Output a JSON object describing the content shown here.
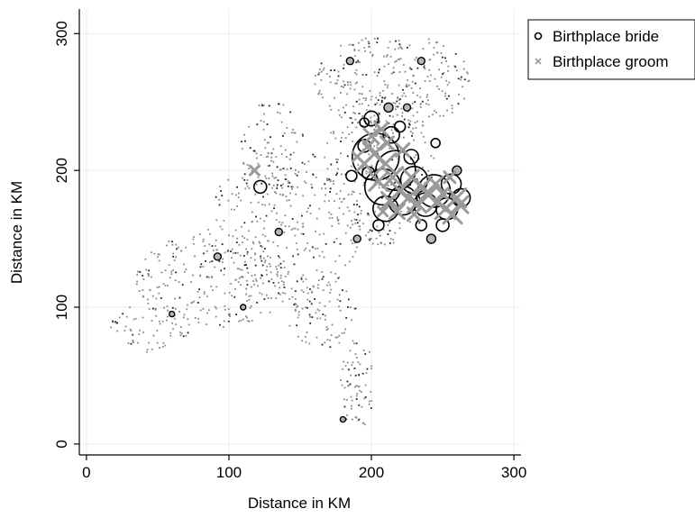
{
  "chart_data": {
    "type": "scatter",
    "title": "",
    "xlabel": "Distance in KM",
    "ylabel": "Distance in KM",
    "xlim": [
      -5,
      305
    ],
    "ylim": [
      -8,
      318
    ],
    "xticks": [
      0,
      100,
      200,
      300
    ],
    "yticks": [
      0,
      100,
      200,
      300
    ],
    "x_tick_labels": [
      "0",
      "100",
      "200",
      "300"
    ],
    "y_tick_labels": [
      "0",
      "100",
      "200",
      "300"
    ],
    "grid": true,
    "legend_position": "top-right outside plot",
    "series": [
      {
        "name": "Birthplace bride",
        "marker": "hollow-circle",
        "color": "#000000",
        "fill": "#b5b5b5",
        "points": [
          [
            203,
            210,
            26
          ],
          [
            217,
            200,
            22
          ],
          [
            208,
            188,
            20
          ],
          [
            244,
            185,
            18
          ],
          [
            230,
            193,
            15
          ],
          [
            222,
            178,
            16
          ],
          [
            210,
            172,
            14
          ],
          [
            238,
            175,
            13
          ],
          [
            253,
            172,
            12
          ],
          [
            256,
            190,
            11
          ],
          [
            263,
            180,
            10
          ],
          [
            200,
            238,
            8
          ],
          [
            214,
            226,
            9
          ],
          [
            195,
            218,
            7
          ],
          [
            228,
            210,
            8
          ],
          [
            220,
            232,
            6
          ],
          [
            198,
            198,
            7
          ],
          [
            186,
            196,
            6
          ],
          [
            235,
            160,
            6
          ],
          [
            250,
            160,
            7
          ],
          [
            205,
            160,
            6
          ],
          [
            122,
            188,
            7
          ],
          [
            195,
            235,
            5
          ],
          [
            185,
            280,
            3
          ],
          [
            235,
            280,
            3
          ],
          [
            92,
            137,
            3
          ],
          [
            135,
            155,
            3
          ],
          [
            60,
            95,
            2
          ],
          [
            180,
            18,
            2
          ],
          [
            110,
            100,
            2
          ],
          [
            245,
            220,
            5
          ],
          [
            212,
            246,
            4
          ],
          [
            242,
            150,
            4
          ],
          [
            190,
            150,
            3
          ],
          [
            225,
            246,
            3
          ],
          [
            260,
            200,
            4
          ]
        ]
      },
      {
        "name": "Birthplace groom",
        "marker": "x",
        "color": "#9a9a9a",
        "points": [
          [
            202,
            212,
            12
          ],
          [
            210,
            205,
            11
          ],
          [
            215,
            195,
            11
          ],
          [
            205,
            192,
            10
          ],
          [
            220,
            185,
            11
          ],
          [
            226,
            180,
            10
          ],
          [
            232,
            176,
            10
          ],
          [
            240,
            182,
            11
          ],
          [
            246,
            177,
            10
          ],
          [
            252,
            172,
            11
          ],
          [
            257,
            168,
            10
          ],
          [
            260,
            180,
            10
          ],
          [
            213,
            178,
            9
          ],
          [
            218,
            170,
            8
          ],
          [
            236,
            188,
            9
          ],
          [
            228,
            195,
            8
          ],
          [
            200,
            225,
            8
          ],
          [
            207,
            230,
            7
          ],
          [
            195,
            205,
            8
          ],
          [
            222,
            215,
            7
          ],
          [
            245,
            190,
            8
          ],
          [
            262,
            175,
            9
          ],
          [
            198,
            218,
            6
          ],
          [
            211,
            220,
            7
          ],
          [
            230,
            168,
            7
          ],
          [
            250,
            183,
            6
          ],
          [
            118,
            200,
            5
          ],
          [
            208,
            170,
            5
          ],
          [
            190,
            210,
            5
          ],
          [
            255,
            195,
            6
          ]
        ]
      }
    ],
    "background_points": {
      "description_note": "",
      "count": 1400
    }
  },
  "legend": {
    "items": [
      {
        "label": "Birthplace bride",
        "marker": "hollow-circle"
      },
      {
        "label": "Birthplace groom",
        "marker": "x"
      }
    ]
  },
  "axes": {
    "x_title": "Distance in KM",
    "y_title": "Distance in KM"
  },
  "colors": {
    "grid": "#e6eef3",
    "axis": "#000000",
    "bride_stroke": "#000000",
    "bride_fill": "#b5b5b5",
    "groom": "#9a9a9a"
  }
}
